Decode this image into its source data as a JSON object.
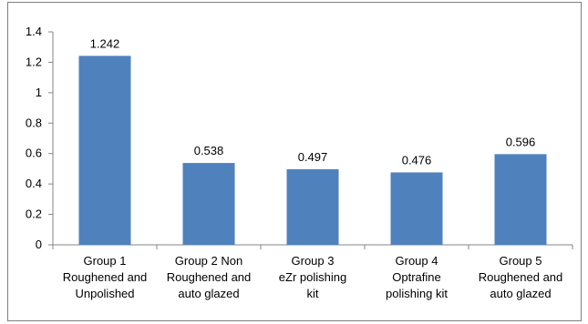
{
  "chart_data": {
    "type": "bar",
    "categories": [
      [
        "Group 1",
        "Roughened and",
        "Unpolished"
      ],
      [
        "Group 2 Non",
        "Roughened and",
        "auto glazed"
      ],
      [
        "Group 3",
        "eZr polishing",
        "kit"
      ],
      [
        "Group 4",
        "Optrafine",
        "polishing kit"
      ],
      [
        "Group 5",
        "Roughened and",
        "auto glazed"
      ]
    ],
    "values": [
      1.242,
      0.538,
      0.497,
      0.476,
      0.596
    ],
    "data_labels": [
      "1.242",
      "0.538",
      "0.497",
      "0.476",
      "0.596"
    ],
    "ylim": [
      0,
      1.4
    ],
    "yticks": [
      0,
      0.2,
      0.4,
      0.6,
      0.8,
      1,
      1.2,
      1.4
    ],
    "ytick_labels": [
      "0",
      "0.2",
      "0.4",
      "0.6",
      "0.8",
      "1",
      "1.2",
      "1.4"
    ],
    "title": "",
    "xlabel": "",
    "ylabel": "",
    "grid": false,
    "legend": "none",
    "bar_color": "#4f81bd"
  }
}
